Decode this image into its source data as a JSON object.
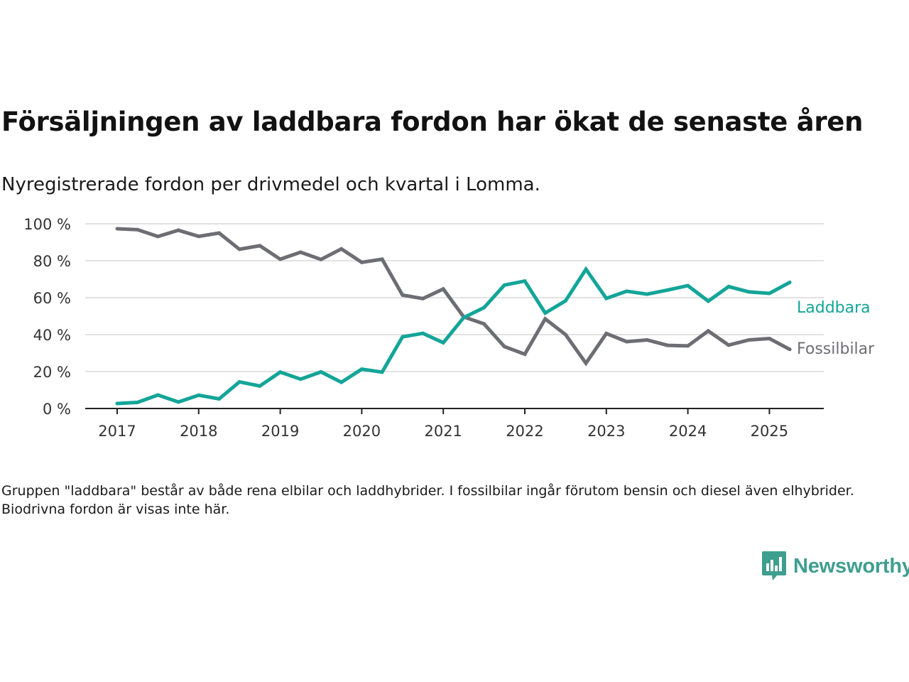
{
  "header": {
    "title": "Försäljningen av laddbara fordon har ökat de senaste åren",
    "subtitle": "Nyregistrerade fordon per drivmedel och kvartal i Lomma."
  },
  "footer": {
    "note": "Gruppen \"laddbara\" består av både rena elbilar och laddhybrider. I fossilbilar ingår förutom bensin och diesel även elhybrider. Biodrivna fordon är visas inte här.",
    "brand": "Newsworthy"
  },
  "colors": {
    "laddbara": "#13a598",
    "fossilbilar": "#6d6d74",
    "grid": "#d9d9d9",
    "axis": "#222222",
    "brand": "#3e9e8f"
  },
  "chart_data": {
    "type": "line",
    "title": "Försäljningen av laddbara fordon har ökat de senaste åren",
    "subtitle": "Nyregistrerade fordon per drivmedel och kvartal i Lomma.",
    "x_unit": "quarter",
    "x": [
      "2017Q1",
      "2017Q2",
      "2017Q3",
      "2017Q4",
      "2018Q1",
      "2018Q2",
      "2018Q3",
      "2018Q4",
      "2019Q1",
      "2019Q2",
      "2019Q3",
      "2019Q4",
      "2020Q1",
      "2020Q2",
      "2020Q3",
      "2020Q4",
      "2021Q1",
      "2021Q2",
      "2021Q3",
      "2021Q4",
      "2022Q1",
      "2022Q2",
      "2022Q3",
      "2022Q4",
      "2023Q1",
      "2023Q2",
      "2023Q3",
      "2023Q4",
      "2024Q1",
      "2024Q2",
      "2024Q3",
      "2024Q4",
      "2025Q1",
      "2025Q2"
    ],
    "x_ticks": [
      "2017",
      "2018",
      "2019",
      "2020",
      "2021",
      "2022",
      "2023",
      "2024",
      "2025"
    ],
    "y_ticks": [
      "0 %",
      "20 %",
      "40 %",
      "60 %",
      "80 %",
      "100 %"
    ],
    "ylim": [
      0,
      100
    ],
    "y_unit": "%",
    "grid": true,
    "series": [
      {
        "name": "Laddbara",
        "color": "#13a598",
        "values": [
          2.7,
          3.3,
          7.3,
          3.5,
          7.2,
          5.2,
          14.4,
          12.2,
          19.7,
          15.9,
          19.8,
          14.2,
          21.3,
          19.7,
          38.8,
          40.7,
          35.6,
          49.2,
          54.6,
          66.8,
          69.0,
          51.7,
          58.3,
          75.4,
          59.6,
          63.5,
          61.9,
          64.1,
          66.5,
          58.1,
          66.0,
          63.1,
          62.3,
          68.3
        ]
      },
      {
        "name": "Fossilbilar",
        "color": "#6d6d74",
        "values": [
          97.3,
          96.8,
          93.1,
          96.5,
          93.2,
          95.0,
          86.2,
          88.1,
          80.8,
          84.6,
          80.7,
          86.4,
          79.1,
          80.8,
          61.4,
          59.5,
          64.7,
          49.6,
          45.8,
          33.5,
          29.4,
          48.5,
          40.0,
          24.5,
          40.6,
          36.2,
          37.1,
          34.2,
          33.9,
          42.0,
          34.3,
          37.1,
          37.9,
          32.0
        ]
      }
    ],
    "legend": "direct labels at line ends, right"
  }
}
